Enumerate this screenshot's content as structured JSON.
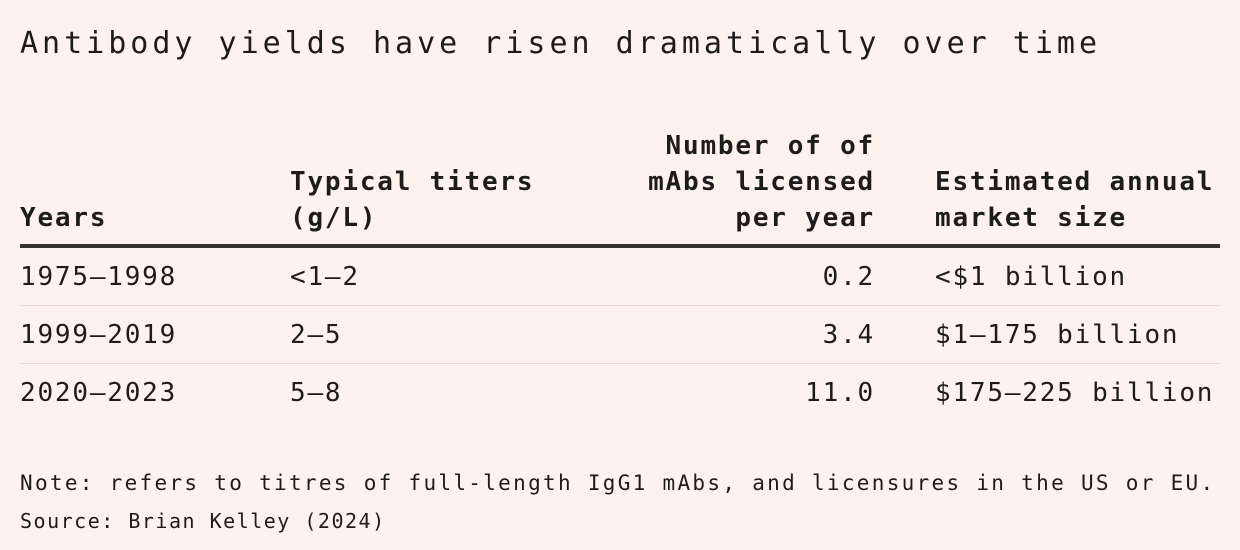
{
  "title": "Antibody yields have risen dramatically over time",
  "colors": {
    "background": "#fdf2ee",
    "text": "#1e1c1b",
    "header_rule": "#34302d",
    "row_divider": "#e9dcd7"
  },
  "table": {
    "headers": [
      "Years",
      "Typical titers\n(g/L)",
      "Number of of\nmAbs licensed\nper year",
      "Estimated annual\nmarket size"
    ],
    "rows": [
      [
        "1975–1998",
        "<1–2",
        "0.2",
        "<$1 billion"
      ],
      [
        "1999–2019",
        "2–5",
        "3.4",
        "$1–175 billion"
      ],
      [
        "2020–2023",
        "5–8",
        "11.0",
        "$175–225 billion"
      ]
    ]
  },
  "note": "Note: refers to titres of full-length IgG1 mAbs, and licensures in the US or EU.",
  "source": "Source: Brian Kelley (2024)",
  "chart_data": {
    "type": "table",
    "title": "Antibody yields have risen dramatically over time",
    "columns": [
      "Years",
      "Typical titers (g/L)",
      "Number of of mAbs licensed per year",
      "Estimated annual market size"
    ],
    "rows": [
      [
        "1975–1998",
        "<1–2",
        0.2,
        "<$1 billion"
      ],
      [
        "1999–2019",
        "2–5",
        3.4,
        "$1–175 billion"
      ],
      [
        "2020–2023",
        "5–8",
        11.0,
        "$175–225 billion"
      ]
    ],
    "note": "Note: refers to titres of full-length IgG1 mAbs, and licensures in the US or EU.",
    "source": "Brian Kelley (2024)"
  }
}
